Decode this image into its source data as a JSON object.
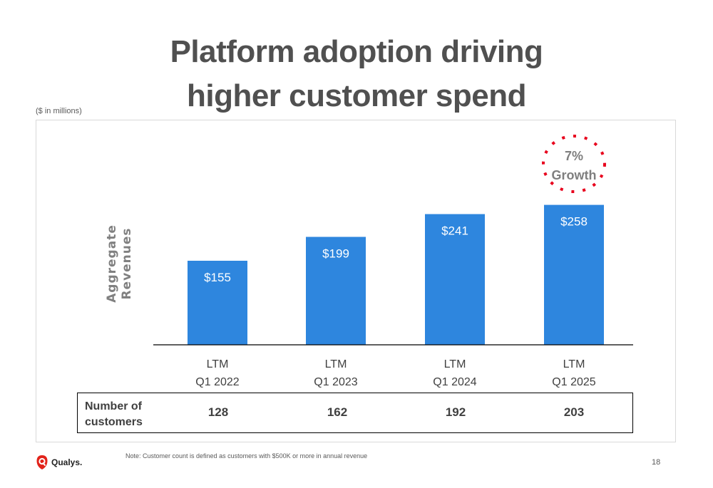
{
  "slide": {
    "title_line1": "Platform adoption driving",
    "title_line2": "higher customer spend",
    "units_note": "($ in millions)",
    "footnote": "Note: Customer count is defined as customers with $500K or more in annual revenue",
    "page_number": "18",
    "logo_text": "Qualys.",
    "colors": {
      "bar": "#2E86DE",
      "growth_circle": "#E8001C",
      "title": "#505050"
    }
  },
  "chart_data": {
    "type": "bar",
    "title": "Platform adoption driving higher customer spend",
    "ylabel_line1": "Aggregate",
    "ylabel_line2": "Revenues",
    "categories": [
      {
        "line1": "LTM",
        "line2": "Q1 2022"
      },
      {
        "line1": "LTM",
        "line2": "Q1 2023"
      },
      {
        "line1": "LTM",
        "line2": "Q1 2024"
      },
      {
        "line1": "LTM",
        "line2": "Q1 2025"
      }
    ],
    "values": [
      155,
      199,
      241,
      258
    ],
    "value_labels": [
      "$155",
      "$199",
      "$241",
      "$258"
    ],
    "ylim": [
      0,
      280
    ],
    "grid": false,
    "annotation": {
      "line1": "7%",
      "line2": "Growth",
      "target_index": 3
    }
  },
  "customers_table": {
    "label_line1": "Number of",
    "label_line2": "customers",
    "values": [
      "128",
      "162",
      "192",
      "203"
    ]
  }
}
